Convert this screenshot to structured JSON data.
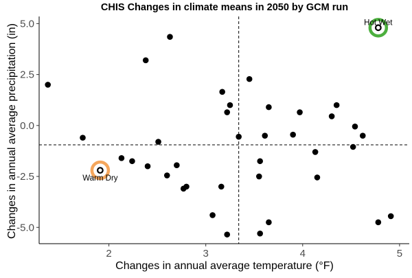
{
  "chart_data": {
    "type": "scatter",
    "title": "CHIS Changes in climate means in 2050 by GCM run",
    "xlabel": "Changes in annual average temperature (°F)",
    "ylabel": "Changes in annual average precipitation (in)",
    "xlim": [
      1.28,
      5.1
    ],
    "ylim": [
      -5.8,
      5.35
    ],
    "x_ticks": [
      2,
      3,
      4,
      5
    ],
    "y_ticks": [
      5.0,
      2.5,
      0.0,
      -2.5,
      -5.0
    ],
    "x_tick_labels": [
      "2",
      "3",
      "4",
      "5"
    ],
    "y_tick_labels": [
      "5.0",
      "2.5",
      "0.0",
      "-2.5",
      "-5.0"
    ],
    "grid": false,
    "reference_lines": {
      "x": 3.34,
      "y": -0.95
    },
    "points": [
      {
        "x": 1.37,
        "y": 2.0
      },
      {
        "x": 1.73,
        "y": -0.6
      },
      {
        "x": 1.91,
        "y": -2.2
      },
      {
        "x": 2.13,
        "y": -1.6
      },
      {
        "x": 2.24,
        "y": -1.75
      },
      {
        "x": 2.38,
        "y": 3.2
      },
      {
        "x": 2.4,
        "y": -2.0
      },
      {
        "x": 2.51,
        "y": -0.8
      },
      {
        "x": 2.6,
        "y": -2.45
      },
      {
        "x": 2.63,
        "y": 4.35
      },
      {
        "x": 2.7,
        "y": -1.95
      },
      {
        "x": 2.77,
        "y": -3.1
      },
      {
        "x": 2.8,
        "y": -3.0
      },
      {
        "x": 3.07,
        "y": -4.4
      },
      {
        "x": 3.16,
        "y": -3.0
      },
      {
        "x": 3.17,
        "y": 1.65
      },
      {
        "x": 3.22,
        "y": 0.65
      },
      {
        "x": 3.22,
        "y": -5.35
      },
      {
        "x": 3.25,
        "y": 1.0
      },
      {
        "x": 3.34,
        "y": -0.55
      },
      {
        "x": 3.45,
        "y": 2.28
      },
      {
        "x": 3.55,
        "y": -2.5
      },
      {
        "x": 3.56,
        "y": -1.75
      },
      {
        "x": 3.56,
        "y": -5.3
      },
      {
        "x": 3.61,
        "y": -0.5
      },
      {
        "x": 3.65,
        "y": 0.9
      },
      {
        "x": 3.65,
        "y": -4.75
      },
      {
        "x": 3.9,
        "y": -0.45
      },
      {
        "x": 3.97,
        "y": 0.65
      },
      {
        "x": 4.13,
        "y": -1.3
      },
      {
        "x": 4.15,
        "y": -2.55
      },
      {
        "x": 4.3,
        "y": 0.45
      },
      {
        "x": 4.35,
        "y": 1.0
      },
      {
        "x": 4.52,
        "y": -1.05
      },
      {
        "x": 4.54,
        "y": -0.05
      },
      {
        "x": 4.62,
        "y": -0.5
      },
      {
        "x": 4.78,
        "y": 4.8
      },
      {
        "x": 4.78,
        "y": -4.75
      },
      {
        "x": 4.91,
        "y": -4.45
      }
    ],
    "highlights": [
      {
        "label": "Warm Dry",
        "x": 1.91,
        "y": -2.2,
        "color": "#f5a65b",
        "label_anchor": "below"
      },
      {
        "label": "Hot Wet",
        "x": 4.78,
        "y": 4.8,
        "color": "#4caf3e",
        "label_anchor": "above"
      }
    ],
    "colors": {
      "points": "#000000",
      "reference_lines": "#000000",
      "axis_text": "#4d4d4d"
    }
  }
}
